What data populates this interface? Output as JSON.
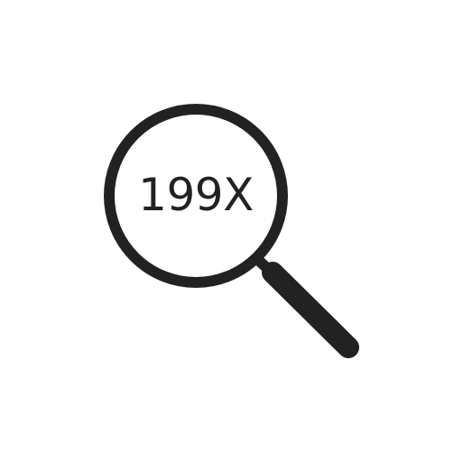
{
  "icon": {
    "name": "magnifying-glass-icon",
    "zoom_label": "199X",
    "color": "#222222",
    "background": "#ffffff"
  }
}
